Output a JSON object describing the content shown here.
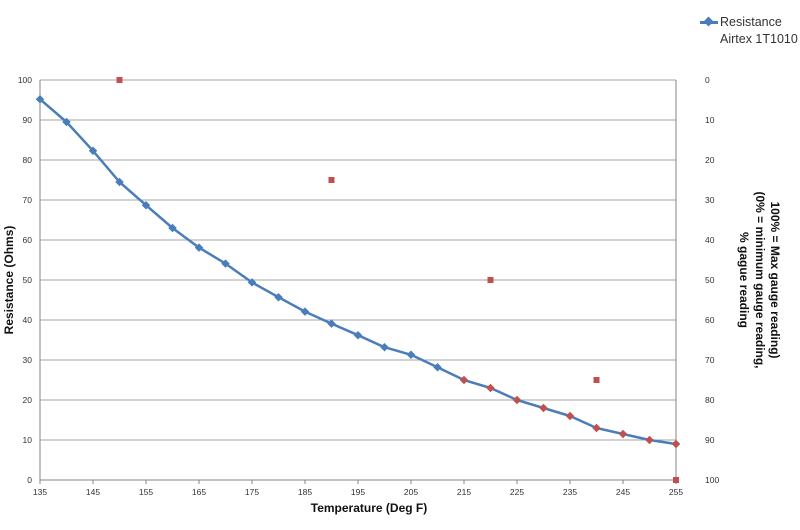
{
  "chart_data": {
    "type": "line",
    "title": "",
    "xlabel": "Temperature (Deg F)",
    "ylabel": "Resistance (Ohms)",
    "y2label_lines": [
      "% gague reading",
      "(0% = minimum gauge reading,",
      "100% = Max gauge reading)"
    ],
    "xlim": [
      135,
      255
    ],
    "ylim": [
      0,
      100
    ],
    "y2lim": [
      0,
      100
    ],
    "y2_reversed": true,
    "grid": true,
    "legend_position": "top-right",
    "x_ticks": [
      "135",
      "145",
      "155",
      "165",
      "175",
      "185",
      "195",
      "205",
      "215",
      "225",
      "235",
      "245",
      "255"
    ],
    "y_ticks": [
      "0",
      "10",
      "20",
      "30",
      "40",
      "50",
      "60",
      "70",
      "80",
      "90",
      "100"
    ],
    "y2_ticks": [
      "0",
      "10",
      "20",
      "30",
      "40",
      "50",
      "60",
      "70",
      "80",
      "90",
      "100"
    ],
    "series": [
      {
        "name_lines": [
          "Resistance",
          "Airtex 1T1010"
        ],
        "color": "#4a7ebb",
        "marker": "diamond",
        "axis": "left",
        "x": [
          135,
          140,
          145,
          150,
          155,
          160,
          165,
          170,
          175,
          180,
          185,
          190,
          195,
          200,
          205,
          210,
          215,
          220,
          225,
          230,
          235,
          240,
          245,
          250,
          255
        ],
        "y": [
          95.2,
          89.5,
          82.3,
          74.5,
          68.7,
          63.0,
          58.1,
          54.1,
          49.4,
          45.7,
          42.1,
          39.1,
          36.2,
          33.2,
          31.3,
          28.2,
          25.0,
          23.0,
          20.0,
          18.0,
          16.0,
          13.0,
          11.5,
          10.0,
          9.0
        ],
        "highlight_color": "#c0504d",
        "highlight_from_x": 215
      },
      {
        "color": "#c0504d",
        "marker": "square",
        "axis": "right",
        "x": [
          150,
          190,
          220,
          240,
          255
        ],
        "y": [
          0,
          25,
          50,
          75,
          100
        ]
      }
    ]
  }
}
